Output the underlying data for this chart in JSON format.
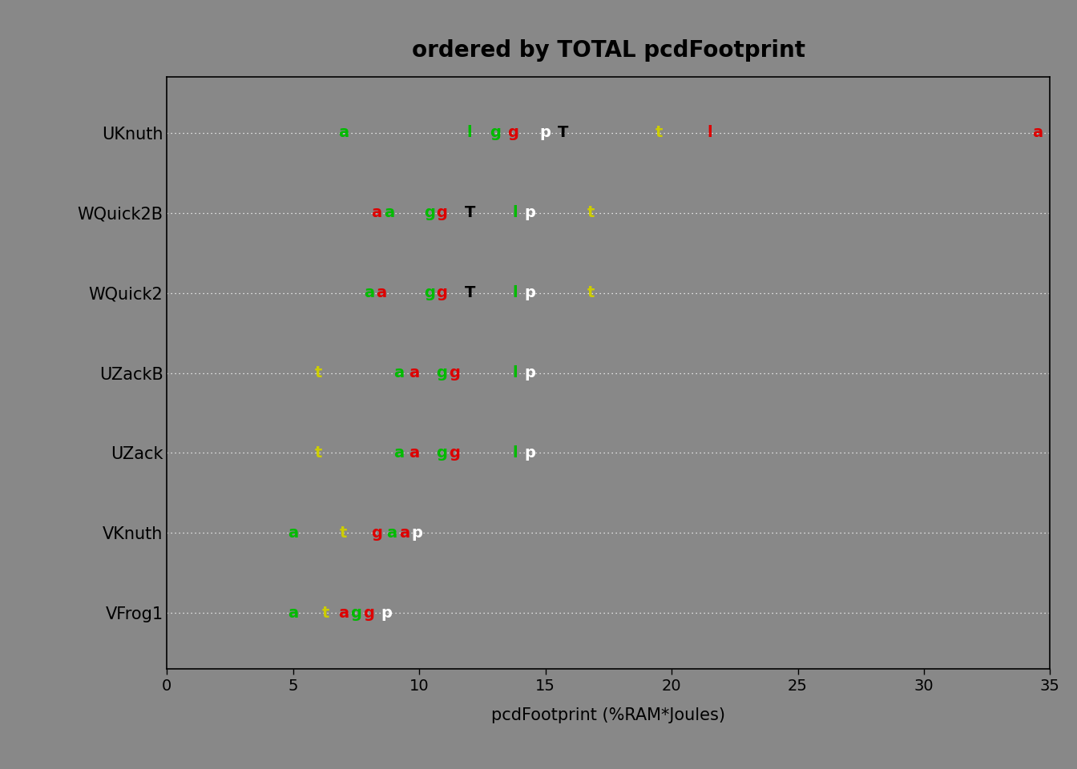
{
  "title": "ordered by TOTAL pcdFootprint",
  "xlabel": "pcdFootprint (%RAM*Joules)",
  "ylabel_labels": [
    "UKnuth",
    "WQuick2B",
    "WQuick2",
    "UZackB",
    "UZack",
    "VKnuth",
    "VFrog1"
  ],
  "xlim": [
    0,
    35
  ],
  "xticks": [
    0,
    5,
    10,
    15,
    20,
    25,
    30,
    35
  ],
  "background_color": "#888888",
  "plot_bg_color": "#888888",
  "title_fontsize": 20,
  "label_fontsize": 15,
  "tick_fontsize": 14,
  "data_fontsize": 14,
  "rows": {
    "UKnuth": [
      {
        "label": "a",
        "x": 7.0,
        "color": "#00bb00"
      },
      {
        "label": "l",
        "x": 12.0,
        "color": "#00bb00"
      },
      {
        "label": "g",
        "x": 13.0,
        "color": "#00bb00"
      },
      {
        "label": "g",
        "x": 13.7,
        "color": "#dd0000"
      },
      {
        "label": "p",
        "x": 15.0,
        "color": "#ffffff"
      },
      {
        "label": "T",
        "x": 15.7,
        "color": "#000000"
      },
      {
        "label": "t",
        "x": 19.5,
        "color": "#cccc00"
      },
      {
        "label": "l",
        "x": 21.5,
        "color": "#dd0000"
      },
      {
        "label": "a",
        "x": 34.5,
        "color": "#dd0000"
      }
    ],
    "WQuick2B": [
      {
        "label": "a",
        "x": 8.3,
        "color": "#dd0000"
      },
      {
        "label": "a",
        "x": 8.8,
        "color": "#00bb00"
      },
      {
        "label": "g",
        "x": 10.4,
        "color": "#00bb00"
      },
      {
        "label": "g",
        "x": 10.9,
        "color": "#dd0000"
      },
      {
        "label": "T",
        "x": 12.0,
        "color": "#000000"
      },
      {
        "label": "l",
        "x": 13.8,
        "color": "#00bb00"
      },
      {
        "label": "p",
        "x": 14.4,
        "color": "#ffffff"
      },
      {
        "label": "t",
        "x": 16.8,
        "color": "#cccc00"
      }
    ],
    "WQuick2": [
      {
        "label": "a",
        "x": 8.0,
        "color": "#00bb00"
      },
      {
        "label": "a",
        "x": 8.5,
        "color": "#dd0000"
      },
      {
        "label": "g",
        "x": 10.4,
        "color": "#00bb00"
      },
      {
        "label": "g",
        "x": 10.9,
        "color": "#dd0000"
      },
      {
        "label": "T",
        "x": 12.0,
        "color": "#000000"
      },
      {
        "label": "l",
        "x": 13.8,
        "color": "#00bb00"
      },
      {
        "label": "p",
        "x": 14.4,
        "color": "#ffffff"
      },
      {
        "label": "t",
        "x": 16.8,
        "color": "#cccc00"
      }
    ],
    "UZackB": [
      {
        "label": "t",
        "x": 6.0,
        "color": "#cccc00"
      },
      {
        "label": "a",
        "x": 9.2,
        "color": "#00bb00"
      },
      {
        "label": "a",
        "x": 9.8,
        "color": "#dd0000"
      },
      {
        "label": "g",
        "x": 10.9,
        "color": "#00bb00"
      },
      {
        "label": "g",
        "x": 11.4,
        "color": "#dd0000"
      },
      {
        "label": "l",
        "x": 13.8,
        "color": "#00bb00"
      },
      {
        "label": "p",
        "x": 14.4,
        "color": "#ffffff"
      }
    ],
    "UZack": [
      {
        "label": "t",
        "x": 6.0,
        "color": "#cccc00"
      },
      {
        "label": "a",
        "x": 9.2,
        "color": "#00bb00"
      },
      {
        "label": "a",
        "x": 9.8,
        "color": "#dd0000"
      },
      {
        "label": "g",
        "x": 10.9,
        "color": "#00bb00"
      },
      {
        "label": "g",
        "x": 11.4,
        "color": "#dd0000"
      },
      {
        "label": "l",
        "x": 13.8,
        "color": "#00bb00"
      },
      {
        "label": "p",
        "x": 14.4,
        "color": "#ffffff"
      }
    ],
    "VKnuth": [
      {
        "label": "a",
        "x": 5.0,
        "color": "#00bb00"
      },
      {
        "label": "t",
        "x": 7.0,
        "color": "#cccc00"
      },
      {
        "label": "g",
        "x": 8.3,
        "color": "#dd0000"
      },
      {
        "label": "a",
        "x": 8.9,
        "color": "#00bb00"
      },
      {
        "label": "a",
        "x": 9.4,
        "color": "#dd0000"
      },
      {
        "label": "p",
        "x": 9.9,
        "color": "#ffffff"
      }
    ],
    "VFrog1": [
      {
        "label": "a",
        "x": 5.0,
        "color": "#00bb00"
      },
      {
        "label": "t",
        "x": 6.3,
        "color": "#cccc00"
      },
      {
        "label": "a",
        "x": 7.0,
        "color": "#dd0000"
      },
      {
        "label": "g",
        "x": 7.5,
        "color": "#00bb00"
      },
      {
        "label": "g",
        "x": 8.0,
        "color": "#dd0000"
      },
      {
        "label": "p",
        "x": 8.7,
        "color": "#ffffff"
      }
    ]
  }
}
